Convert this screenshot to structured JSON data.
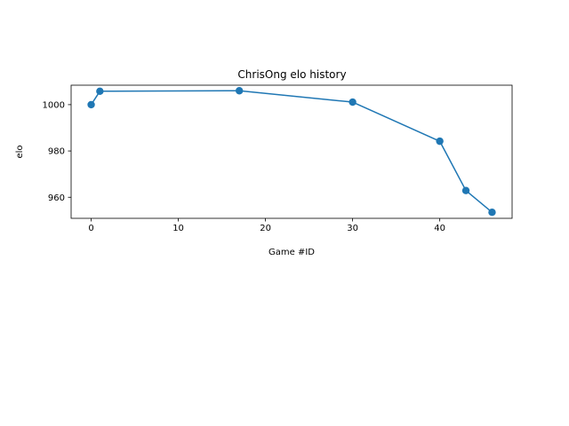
{
  "chart_data": {
    "type": "line",
    "title": "ChrisOng elo history",
    "xlabel": "Game #ID",
    "ylabel": "elo",
    "xlim": [
      -2.3,
      48.3
    ],
    "ylim": [
      950.9,
      1008.4
    ],
    "xticks": [
      0,
      10,
      20,
      30,
      40
    ],
    "yticks": [
      960,
      980,
      1000
    ],
    "grid": false,
    "series": [
      {
        "color": "#1f77b4",
        "x": [
          0,
          1,
          17,
          30,
          40,
          43,
          46
        ],
        "y": [
          1000.0,
          1005.8,
          1006.0,
          1001.1,
          984.2,
          962.9,
          953.5
        ]
      }
    ]
  }
}
